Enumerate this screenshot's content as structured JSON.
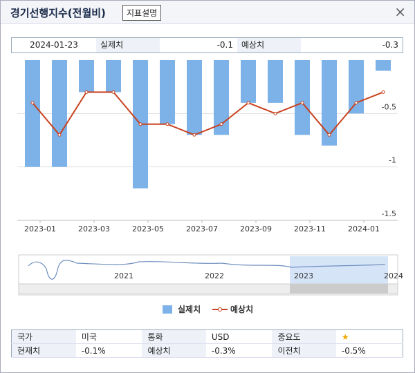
{
  "dialog": {
    "title": "경기선행지수(전월비)",
    "button": "지표설명",
    "close": "×"
  },
  "summary": {
    "date": "2024-01-23",
    "actual_label": "실제치",
    "actual": "-0.1",
    "forecast_label": "예상치",
    "forecast": "-0.3"
  },
  "chart_data": {
    "type": "bar",
    "categories": [
      null,
      "2023-01",
      null,
      "2023-03",
      null,
      "2023-05",
      null,
      "2023-07",
      null,
      "2023-09",
      null,
      "2023-11",
      null,
      "2024-01"
    ],
    "series": [
      {
        "name": "실제치",
        "type": "bar",
        "color": "#7cb2e8",
        "values": [
          -1.0,
          -1.0,
          -0.3,
          -0.3,
          -1.2,
          -0.6,
          -0.7,
          -0.7,
          -0.4,
          -0.4,
          -0.7,
          -0.8,
          -0.5,
          -0.1
        ]
      },
      {
        "name": "예상치",
        "type": "line",
        "color": "#c8411e",
        "values": [
          -0.4,
          -0.7,
          -0.3,
          -0.3,
          -0.6,
          -0.6,
          -0.7,
          -0.6,
          -0.4,
          -0.5,
          -0.4,
          -0.7,
          -0.4,
          -0.3
        ]
      }
    ],
    "ylim": [
      -1.5,
      0
    ],
    "yticks": [
      -0.5,
      -1,
      -1.5
    ],
    "grid": true,
    "navigator_years": [
      "2021",
      "2022",
      "2023",
      "2024"
    ]
  },
  "info_table": {
    "rows": [
      [
        "국가",
        "미국",
        "통화",
        "USD",
        "중요도",
        "★"
      ],
      [
        "현재치",
        "-0.1%",
        "예상치",
        "-0.3%",
        "이전치",
        "-0.5%"
      ]
    ]
  }
}
